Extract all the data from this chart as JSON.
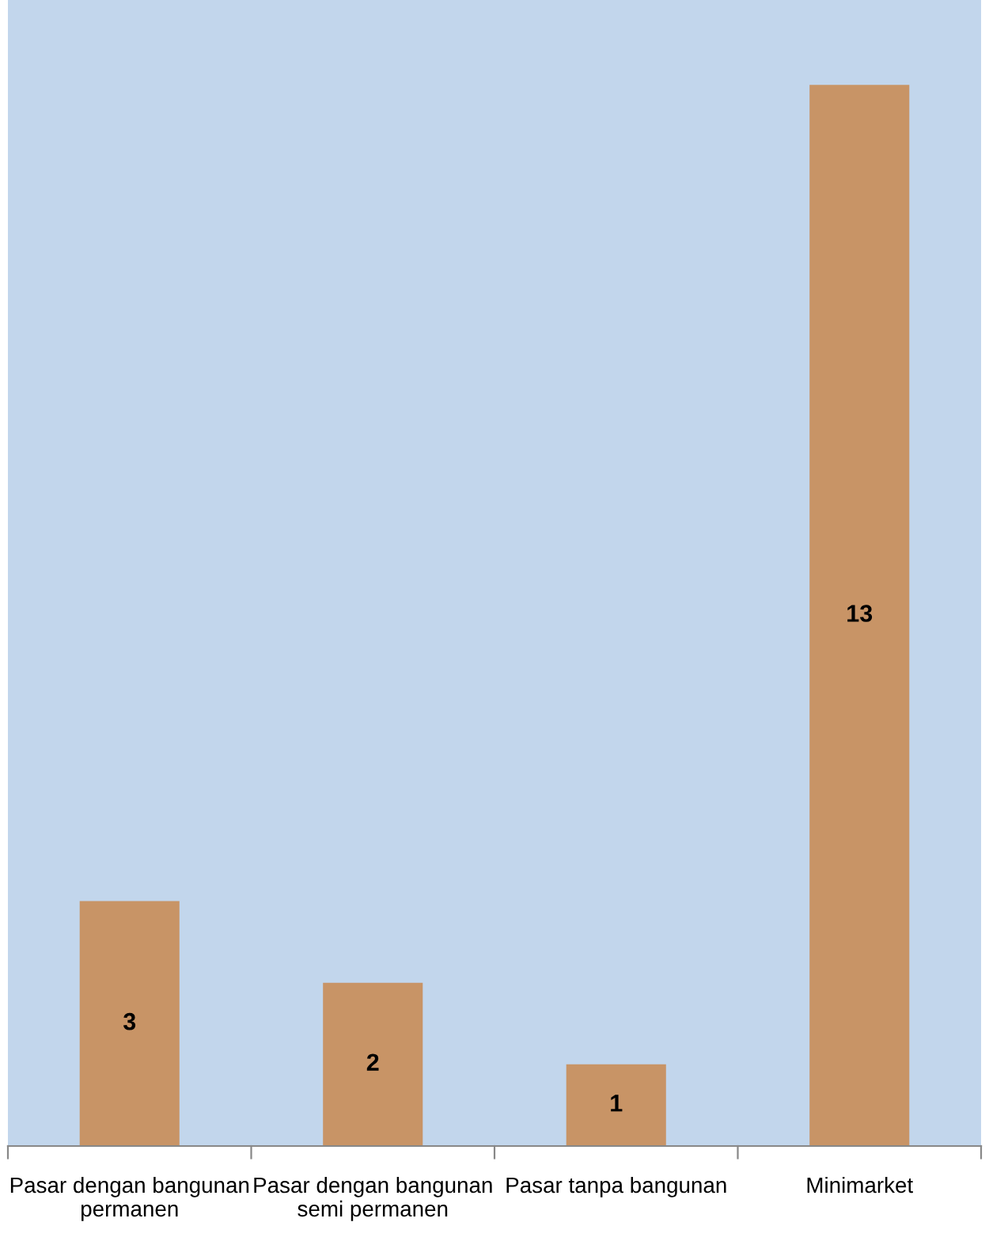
{
  "chart_data": {
    "type": "bar",
    "categories": [
      "Pasar dengan bangunan permanen",
      "Pasar dengan bangunan semi permanen",
      "Pasar tanpa bangunan",
      "Minimarket"
    ],
    "values": [
      3,
      2,
      1,
      13
    ],
    "color": "#c89466",
    "data_labels": true,
    "grid": false,
    "legend": false,
    "tick_labels": "x"
  }
}
